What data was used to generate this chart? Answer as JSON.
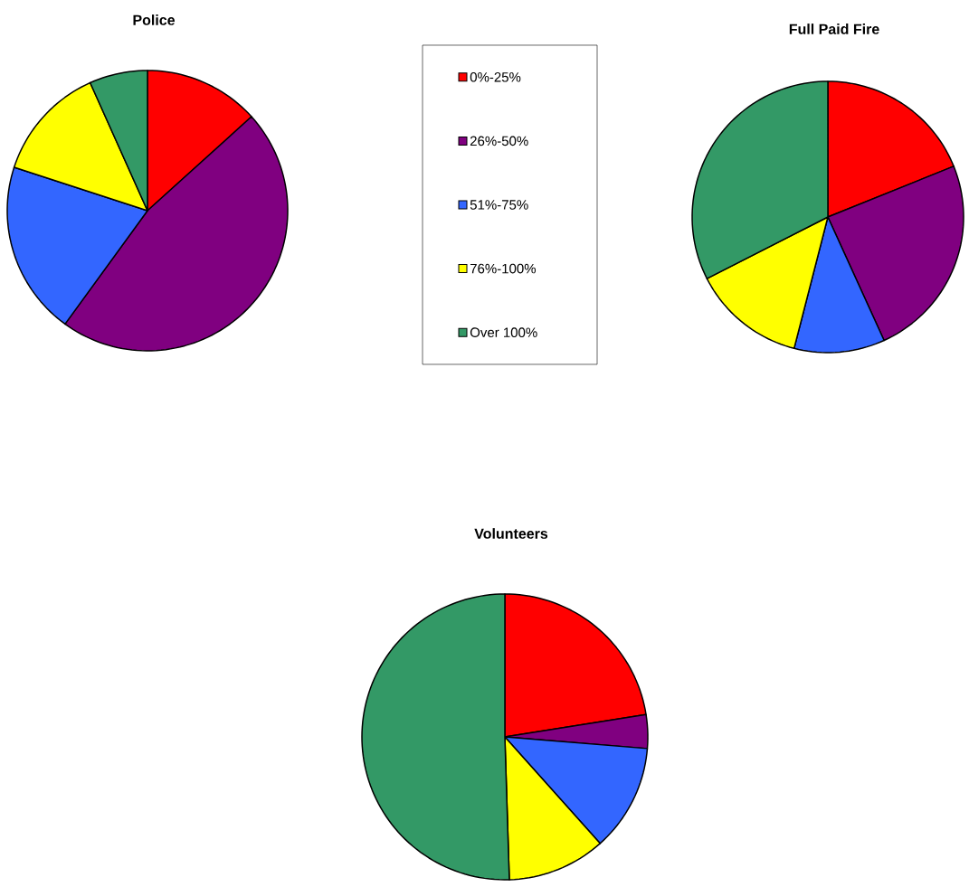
{
  "chart_data": [
    {
      "type": "pie",
      "title": "Police",
      "categories": [
        "0%-25%",
        "26%-50%",
        "51%-75%",
        "76%-100%",
        "Over 100%"
      ],
      "values": [
        13.3,
        46.7,
        20,
        13.3,
        6.7
      ],
      "colors": [
        "#ff0000",
        "#800080",
        "#3366ff",
        "#ffff00",
        "#339966"
      ],
      "legend": "right"
    },
    {
      "type": "pie",
      "title": "Full Paid Fire",
      "values": [
        18.9,
        24.3,
        10.8,
        13.5,
        32.5
      ],
      "colors": [
        "#ff0000",
        "#800080",
        "#3366ff",
        "#ffff00",
        "#339966"
      ]
    },
    {
      "type": "pie",
      "title": "Volunteers",
      "values": [
        22.5,
        3.8,
        12.1,
        11.1,
        50.5
      ],
      "colors": [
        "#ff0000",
        "#800080",
        "#3366ff",
        "#ffff00",
        "#339966"
      ]
    }
  ]
}
